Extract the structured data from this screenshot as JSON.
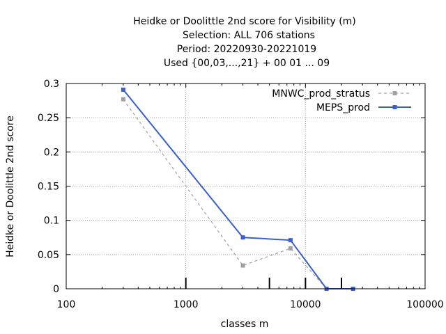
{
  "chart_data": {
    "type": "line",
    "title_lines": [
      "Heidke or Doolittle 2nd score  for Visibility (m)",
      "Selection: ALL    706 stations",
      "Period: 20220930-20221019",
      "Used {00,03,...,21} + 00 01 ... 09"
    ],
    "xlabel": "classes m",
    "ylabel": "Heidke or Doolittle 2nd score",
    "x_scale": "log",
    "xlim": [
      100,
      100000
    ],
    "ylim": [
      0,
      0.3
    ],
    "x_ticks": [
      100,
      1000,
      10000,
      100000
    ],
    "x_tick_labels": [
      "100",
      "1000",
      "10000",
      "100000"
    ],
    "y_ticks": [
      0,
      0.05,
      0.1,
      0.15,
      0.2,
      0.25,
      0.3
    ],
    "y_tick_labels": [
      "0",
      "0.05",
      "0.1",
      "0.15",
      "0.2",
      "0.25",
      "0.3"
    ],
    "grid": true,
    "legend_position": "top-right",
    "threshold_marks": [
      1000,
      5000,
      10000,
      20000
    ],
    "series": [
      {
        "name": "MNWC_prod_stratus",
        "color": "#a0a0a0",
        "dash": true,
        "x": [
          300,
          3000,
          7500,
          15000,
          25000
        ],
        "y": [
          0.277,
          0.034,
          0.059,
          0.0,
          0.0
        ]
      },
      {
        "name": "MEPS_prod",
        "color": "#3a5fcd",
        "dash": false,
        "x": [
          300,
          3000,
          7500,
          15000,
          25000
        ],
        "y": [
          0.291,
          0.075,
          0.071,
          0.0,
          0.0
        ]
      }
    ]
  }
}
